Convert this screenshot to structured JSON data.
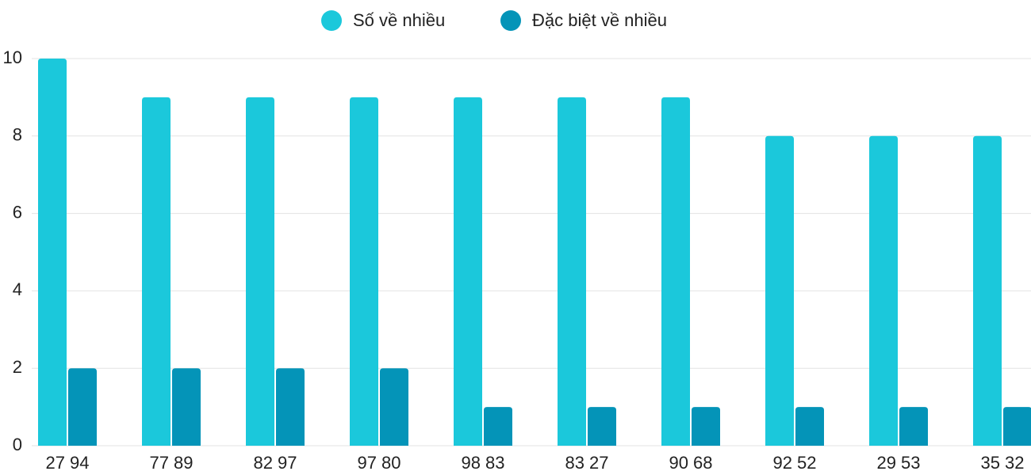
{
  "chart_data": {
    "type": "bar",
    "categories": [
      "27 94",
      "77 89",
      "82 97",
      "97 80",
      "98 83",
      "83 27",
      "90 68",
      "92 52",
      "29 53",
      "35 32"
    ],
    "series": [
      {
        "name": "Số về nhiều",
        "color": "#1bc8db",
        "values": [
          10,
          9,
          9,
          9,
          9,
          9,
          9,
          8,
          8,
          8
        ]
      },
      {
        "name": "Đặc biệt về nhiều",
        "color": "#0494b8",
        "values": [
          2,
          2,
          2,
          2,
          1,
          1,
          1,
          1,
          1,
          1
        ]
      }
    ],
    "ylim": [
      0,
      10
    ],
    "yticks": [
      0,
      2,
      4,
      6,
      8,
      10
    ],
    "grid": true,
    "legend": "top"
  }
}
